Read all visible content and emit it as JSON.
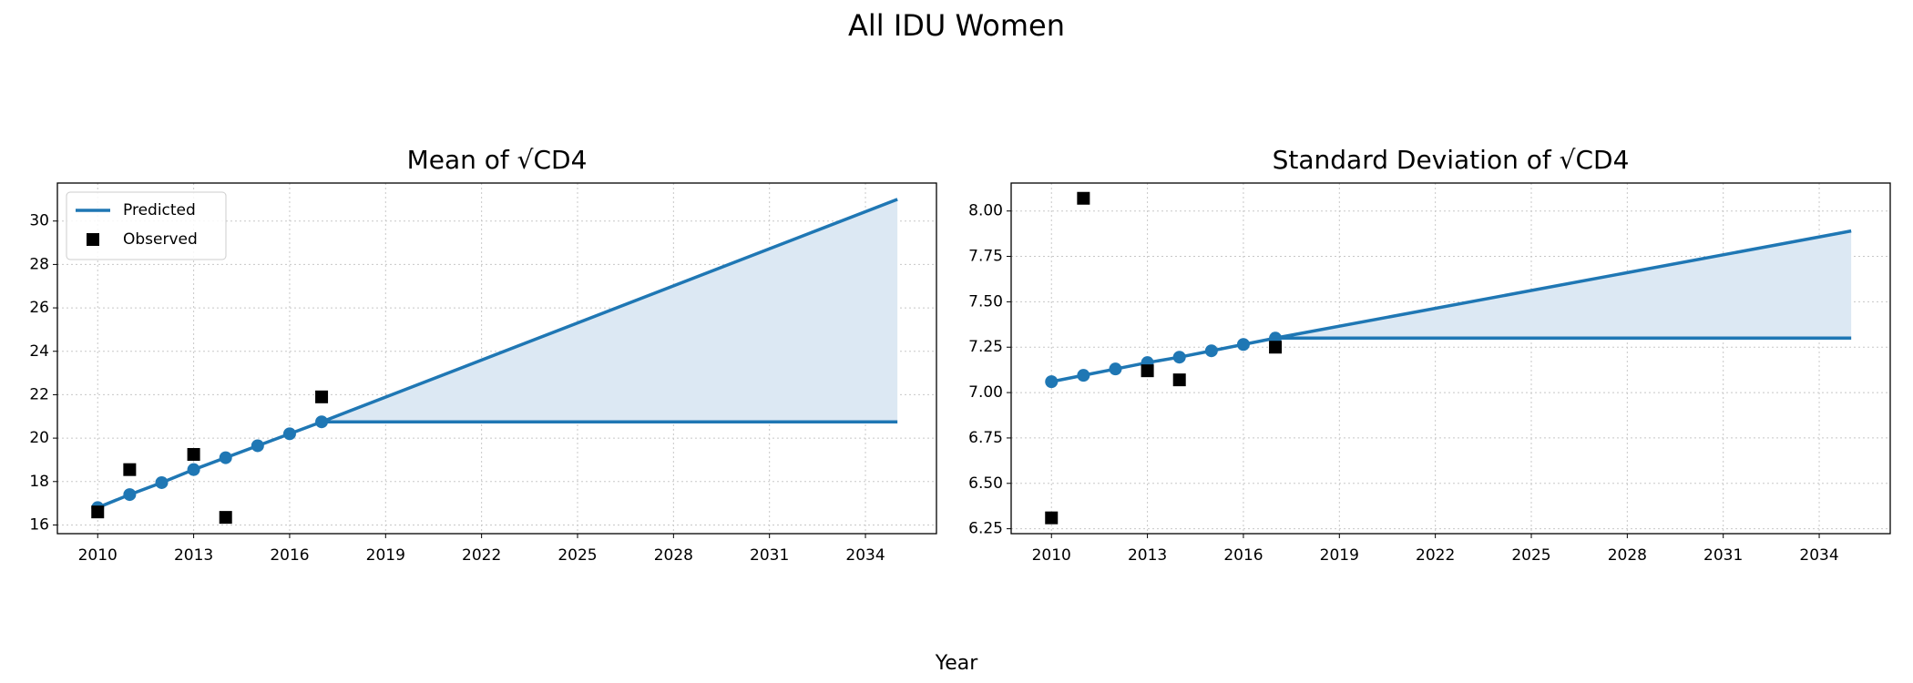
{
  "figure": {
    "title": "All IDU Women",
    "xlabel": "Year"
  },
  "chart_data": [
    {
      "type": "line",
      "title": "Mean of √CD4",
      "legend": "upper left",
      "grid": true,
      "xlim": [
        2008.74,
        2036.22
      ],
      "ylim": [
        15.6,
        31.75
      ],
      "xticks": [
        2010,
        2013,
        2016,
        2019,
        2022,
        2025,
        2028,
        2031,
        2034
      ],
      "yticks": [
        16,
        18,
        20,
        22,
        24,
        26,
        28,
        30
      ],
      "series": [
        {
          "name": "Predicted",
          "color": "#1f77b4",
          "marker": "circle",
          "x": [
            2010,
            2011,
            2012,
            2013,
            2014,
            2015,
            2016,
            2017
          ],
          "values": [
            16.8,
            17.4,
            17.95,
            18.55,
            19.1,
            19.65,
            20.2,
            20.75
          ],
          "projection": {
            "x": [
              2017,
              2035
            ],
            "upper": [
              20.75,
              31.0
            ],
            "lower": [
              20.75,
              20.75
            ],
            "fill": "#dce8f3"
          }
        },
        {
          "name": "Observed",
          "color": "#000000",
          "marker": "square",
          "x": [
            2010,
            2011,
            2013,
            2014,
            2017
          ],
          "values": [
            16.6,
            18.55,
            19.25,
            16.35,
            21.9
          ]
        }
      ]
    },
    {
      "type": "line",
      "title": "Standard Deviation of √CD4",
      "grid": true,
      "xlim": [
        2008.74,
        2036.22
      ],
      "ylim": [
        6.223,
        8.154
      ],
      "xticks": [
        2010,
        2013,
        2016,
        2019,
        2022,
        2025,
        2028,
        2031,
        2034
      ],
      "yticks": [
        {
          "value": 6.25,
          "label": "6.25"
        },
        {
          "value": 6.5,
          "label": "6.50"
        },
        {
          "value": 6.75,
          "label": "6.75"
        },
        {
          "value": 7,
          "label": "7.00"
        },
        {
          "value": 7.25,
          "label": "7.25"
        },
        {
          "value": 7.5,
          "label": "7.50"
        },
        {
          "value": 7.75,
          "label": "7.75"
        },
        {
          "value": 8,
          "label": "8.00"
        }
      ],
      "series": [
        {
          "name": "Predicted",
          "color": "#1f77b4",
          "marker": "circle",
          "x": [
            2010,
            2011,
            2012,
            2013,
            2014,
            2015,
            2016,
            2017
          ],
          "values": [
            7.06,
            7.095,
            7.13,
            7.165,
            7.195,
            7.23,
            7.265,
            7.3
          ],
          "projection": {
            "x": [
              2017,
              2035
            ],
            "upper": [
              7.3,
              7.89
            ],
            "lower": [
              7.3,
              7.3
            ],
            "fill": "#dce8f3"
          }
        },
        {
          "name": "Observed",
          "color": "#000000",
          "marker": "square",
          "x": [
            2010,
            2011,
            2013,
            2014,
            2017
          ],
          "values": [
            6.31,
            8.07,
            7.12,
            7.07,
            7.25
          ]
        }
      ]
    }
  ]
}
